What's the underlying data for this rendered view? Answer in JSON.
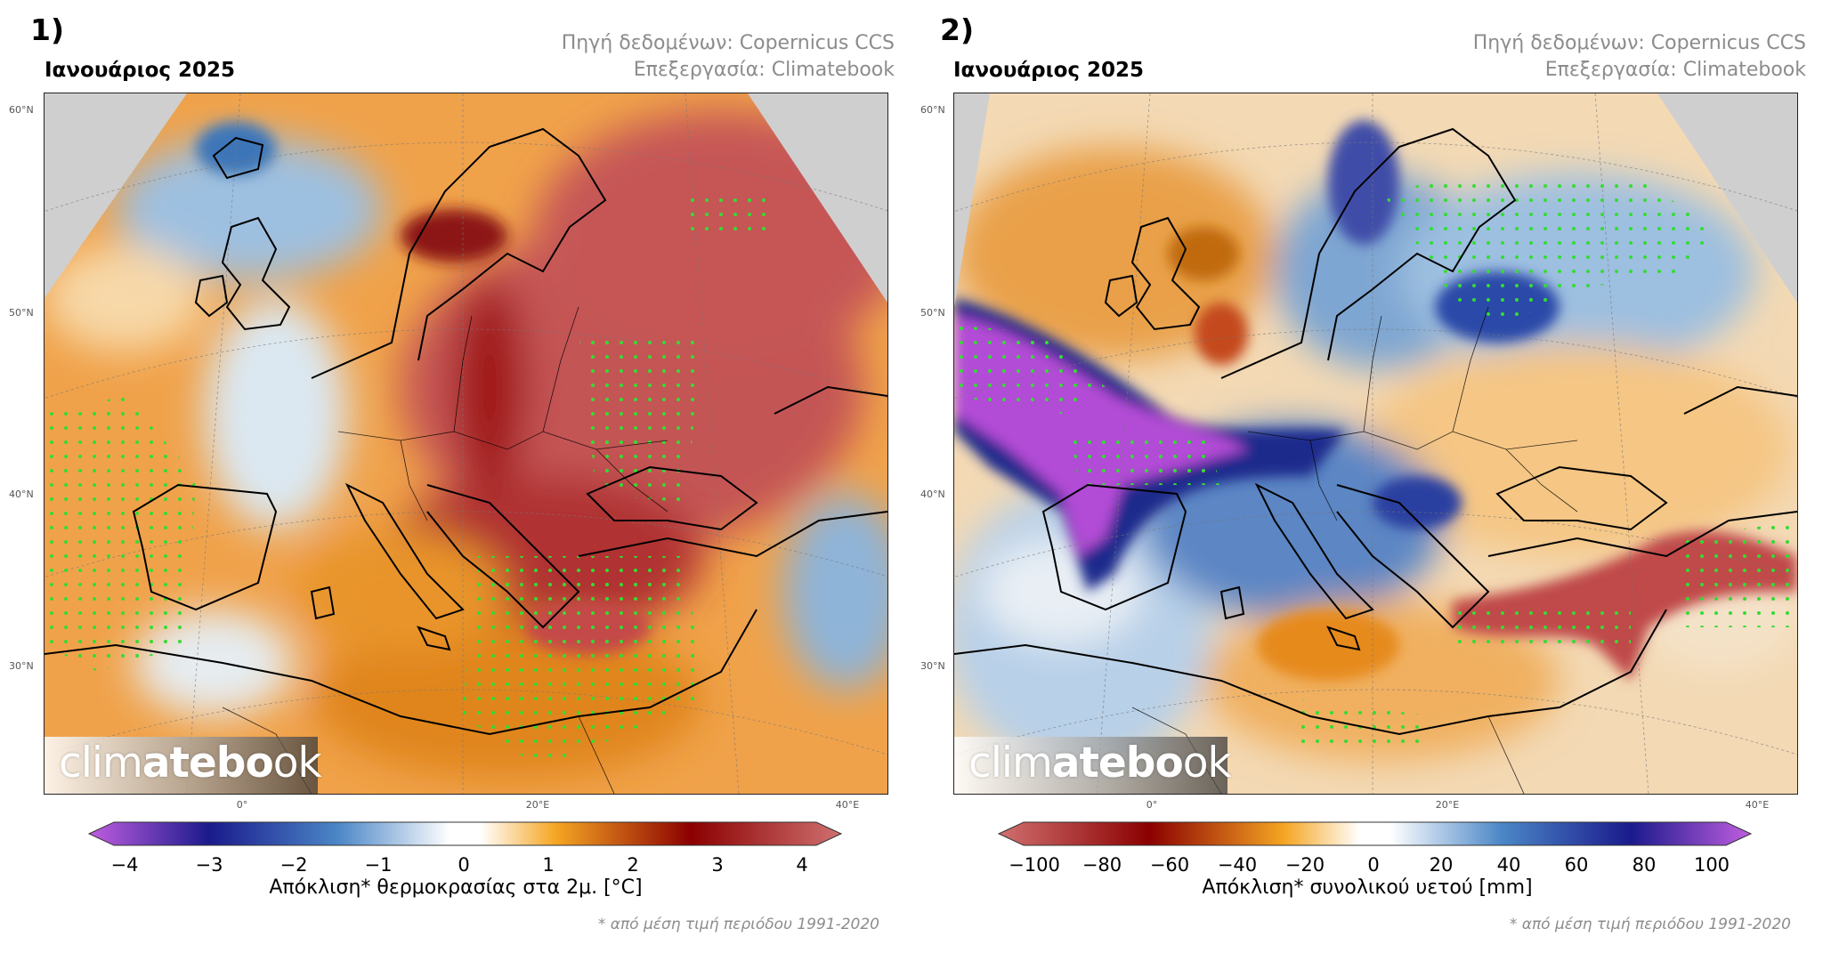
{
  "panels": [
    {
      "number": "1)",
      "period": "Ιανουάριος 2025",
      "source": "Πηγή δεδομένων: Copernicus CCS",
      "processing": "Επεξεργασία: Climatebook",
      "logo": "climatebook",
      "lat_labels": [
        "60°N",
        "50°N",
        "40°N",
        "30°N"
      ],
      "lon_labels": [
        "0°",
        "20°E",
        "40°E"
      ],
      "colorbar": {
        "label": "Απόκλιση* θερμοκρασίας στα 2μ. [°C]",
        "ticks": [
          "−4",
          "−3",
          "−2",
          "−1",
          "0",
          "1",
          "2",
          "3",
          "4"
        ],
        "range": [
          -4,
          4
        ],
        "colors": [
          "#b24bd6",
          "#1a1a8c",
          "#4a86c6",
          "#ffffff",
          "#f5a623",
          "#8b0000",
          "#c85a5a"
        ]
      },
      "footnote": "* από μέση τιμή περιόδου 1991-2020"
    },
    {
      "number": "2)",
      "period": "Ιανουάριος 2025",
      "source": "Πηγή δεδομένων: Copernicus CCS",
      "processing": "Επεξεργασία: Climatebook",
      "logo": "climatebook",
      "lat_labels": [
        "60°N",
        "50°N",
        "40°N",
        "30°N"
      ],
      "lon_labels": [
        "0°",
        "20°E",
        "40°E"
      ],
      "colorbar": {
        "label": "Απόκλιση* συνολικού υετού [mm]",
        "ticks": [
          "−100",
          "−80",
          "−60",
          "−40",
          "−20",
          "0",
          "20",
          "40",
          "60",
          "80",
          "100"
        ],
        "range": [
          -100,
          100
        ],
        "colors": [
          "#c85a5a",
          "#8b0000",
          "#f5a623",
          "#ffffff",
          "#4a86c6",
          "#1a1a8c",
          "#b24bd6"
        ]
      },
      "footnote": "* από μέση τιμή περιόδου 1991-2020"
    }
  ]
}
